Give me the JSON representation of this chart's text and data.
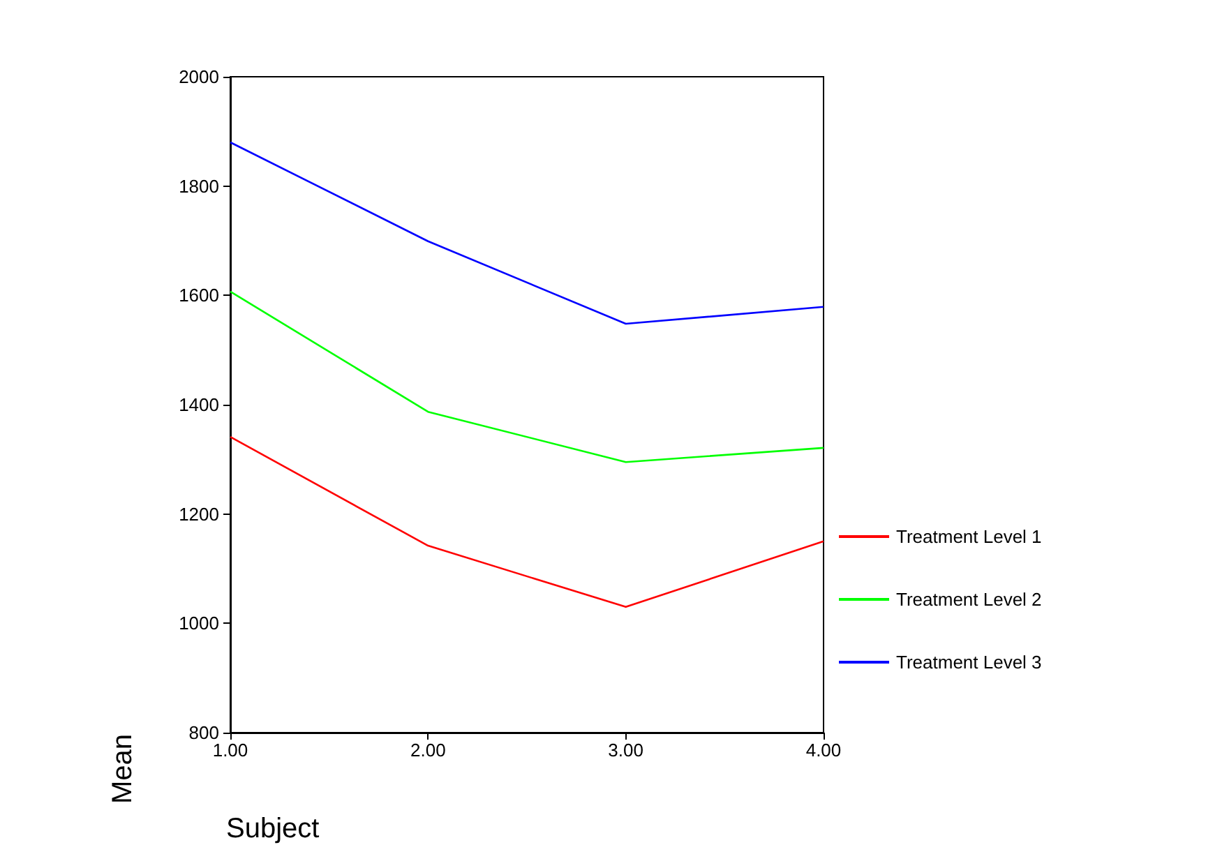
{
  "chart_data": {
    "type": "line",
    "xlabel": "Subject",
    "ylabel": "Mean",
    "x": [
      1,
      2,
      3,
      4
    ],
    "series": [
      {
        "name": "Treatment Level 1",
        "color": "#ff0000",
        "values": [
          1341,
          1142,
          1030,
          1150
        ]
      },
      {
        "name": "Treatment Level 2",
        "color": "#00ff00",
        "values": [
          1607,
          1387,
          1295,
          1321
        ]
      },
      {
        "name": "Treatment Level 3",
        "color": "#0000ff",
        "values": [
          1880,
          1699,
          1548,
          1579
        ]
      }
    ],
    "xlim": [
      1,
      4
    ],
    "xticks": [
      {
        "value": 1,
        "label": "1.00"
      },
      {
        "value": 2,
        "label": "2.00"
      },
      {
        "value": 3,
        "label": "3.00"
      },
      {
        "value": 4,
        "label": "4.00"
      }
    ],
    "ylim": [
      800,
      2000
    ],
    "yticks": [
      800,
      1000,
      1200,
      1400,
      1600,
      1800,
      2000
    ],
    "grid": false,
    "legend": "right",
    "marker": "none",
    "line_style": "solid"
  }
}
